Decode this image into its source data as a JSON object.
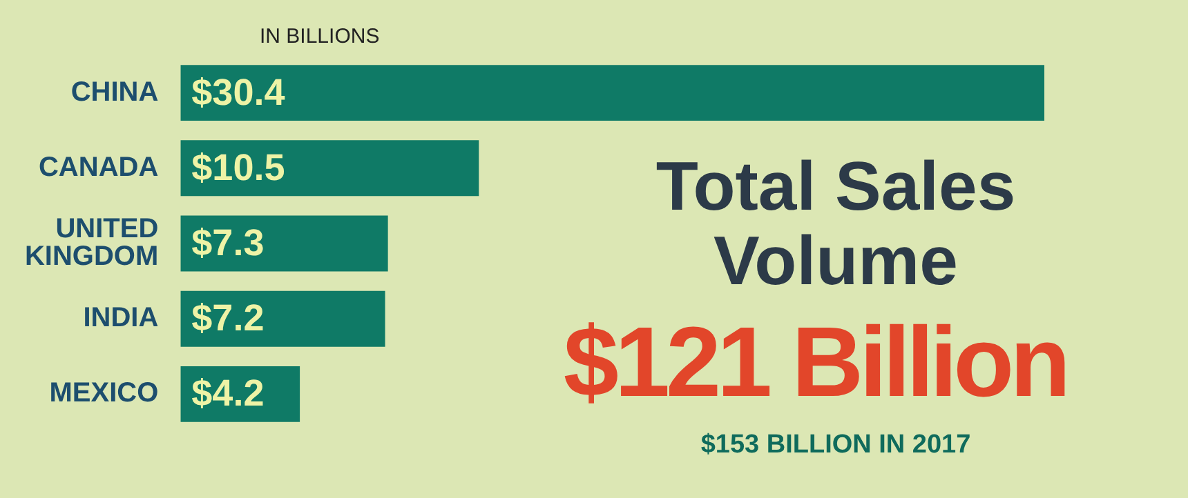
{
  "chart_data": {
    "type": "bar",
    "orientation": "horizontal",
    "subtitle": "IN BILLIONS",
    "title": "Total Sales Volume",
    "categories": [
      "CHINA",
      "CANADA",
      "UNITED KINGDOM",
      "INDIA",
      "MEXICO"
    ],
    "values": [
      30.4,
      10.5,
      7.3,
      7.2,
      4.2
    ],
    "value_labels": [
      "$30.4",
      "$10.5",
      "$7.3",
      "$7.2",
      "$4.2"
    ],
    "color": "#0f7a66",
    "legend": false,
    "tick_labels": "y",
    "annotations": [
      "$121 Billion",
      "$153 BILLION IN 2017"
    ]
  }
}
